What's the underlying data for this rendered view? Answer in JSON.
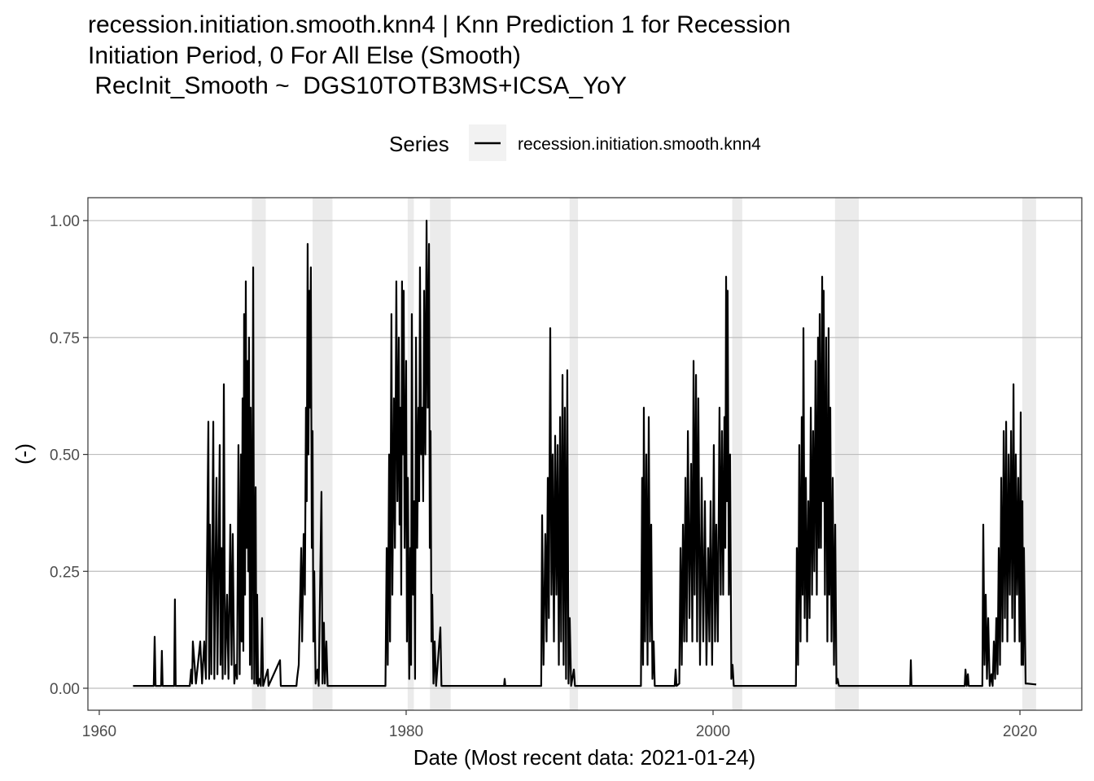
{
  "chart_data": {
    "type": "line",
    "title": [
      "recession.initiation.smooth.knn4 | Knn Prediction 1 for Recession",
      "Initiation Period, 0 For All Else (Smooth)",
      " RecInit_Smooth ~  DGS10TOTB3MS+ICSA_YoY"
    ],
    "xlabel": "Date (Most recent data: 2021-01-24)",
    "ylabel": "(-)",
    "legend_title": "Series",
    "legend_position": "top",
    "grid": true,
    "xlim": [
      1959.26,
      2024.03
    ],
    "ylim": [
      -0.047,
      1.049
    ],
    "xticks": [
      1960,
      1980,
      2000,
      2020
    ],
    "yticks": [
      {
        "value": 0,
        "label": "0.00"
      },
      {
        "value": 0.25,
        "label": "0.25"
      },
      {
        "value": 0.5,
        "label": "0.50"
      },
      {
        "value": 0.75,
        "label": "0.75"
      },
      {
        "value": 1,
        "label": "1.00"
      }
    ],
    "shaded_regions": [
      [
        1969.95,
        1970.85
      ],
      [
        1973.9,
        1975.2
      ],
      [
        1980.1,
        1980.5
      ],
      [
        1981.55,
        1982.9
      ],
      [
        1990.65,
        1991.2
      ],
      [
        2001.25,
        2001.9
      ],
      [
        2007.95,
        2009.5
      ],
      [
        2020.15,
        2021.05
      ]
    ],
    "shade_color": "#ebebeb",
    "x": [
      1962.2,
      1963.55,
      1963.61,
      1963.67,
      1964.03,
      1964.08,
      1964.13,
      1964.88,
      1964.93,
      1964.98,
      1965.9,
      1965.99,
      1966.05,
      1966.1,
      1966.3,
      1966.58,
      1966.7,
      1966.84,
      1966.95,
      1967.11,
      1967.16,
      1967.21,
      1967.3,
      1967.43,
      1967.5,
      1967.64,
      1967.7,
      1967.85,
      1967.9,
      1967.96,
      1968.04,
      1968.12,
      1968.2,
      1968.33,
      1968.42,
      1968.54,
      1968.62,
      1968.7,
      1968.8,
      1968.91,
      1968.98,
      1969.07,
      1969.15,
      1969.23,
      1969.28,
      1969.34,
      1969.39,
      1969.44,
      1969.5,
      1969.55,
      1969.6,
      1969.66,
      1969.71,
      1969.76,
      1969.82,
      1969.87,
      1969.95,
      1970.03,
      1970.1,
      1970.19,
      1970.24,
      1970.29,
      1970.35,
      1970.45,
      1970.53,
      1970.61,
      1970.68,
      1970.98,
      1971.03,
      1971.78,
      1971.83,
      1972.85,
      1972.89,
      1973.0,
      1973.16,
      1973.22,
      1973.32,
      1973.4,
      1973.47,
      1973.52,
      1973.58,
      1973.63,
      1973.69,
      1973.74,
      1973.79,
      1973.85,
      1973.9,
      1973.95,
      1974.01,
      1974.1,
      1974.22,
      1974.3,
      1974.48,
      1974.55,
      1974.64,
      1974.7,
      1974.8,
      1974.88,
      1978.65,
      1978.73,
      1978.8,
      1978.89,
      1978.95,
      1979.04,
      1979.1,
      1979.2,
      1979.27,
      1979.36,
      1979.43,
      1979.52,
      1979.57,
      1979.63,
      1979.68,
      1979.73,
      1979.78,
      1979.84,
      1979.9,
      1980.0,
      1980.05,
      1980.11,
      1980.2,
      1980.27,
      1980.32,
      1980.37,
      1980.45,
      1980.53,
      1980.58,
      1980.64,
      1980.72,
      1980.8,
      1980.85,
      1980.9,
      1980.98,
      1981.06,
      1981.11,
      1981.17,
      1981.25,
      1981.33,
      1981.4,
      1981.49,
      1981.54,
      1981.59,
      1981.65,
      1981.7,
      1981.78,
      1981.86,
      1981.95,
      1982.23,
      1982.3,
      1986.38,
      1986.42,
      1986.46,
      1988.8,
      1988.86,
      1988.95,
      1989.07,
      1989.15,
      1989.23,
      1989.3,
      1989.39,
      1989.47,
      1989.55,
      1989.63,
      1989.71,
      1989.79,
      1989.87,
      1989.95,
      1990.03,
      1990.1,
      1990.19,
      1990.26,
      1990.34,
      1990.42,
      1990.5,
      1990.58,
      1990.66,
      1990.75,
      1990.93,
      1991.0,
      1995.3,
      1995.38,
      1995.44,
      1995.49,
      1995.57,
      1995.65,
      1995.73,
      1995.81,
      1995.89,
      1995.97,
      1996.05,
      1996.13,
      1996.2,
      1997.5,
      1997.56,
      1997.62,
      1997.8,
      1997.88,
      1997.96,
      1998.04,
      1998.12,
      1998.2,
      1998.28,
      1998.36,
      1998.46,
      1998.57,
      1998.65,
      1998.73,
      1998.8,
      1998.89,
      1998.96,
      1999.04,
      1999.15,
      1999.26,
      1999.36,
      1999.47,
      1999.57,
      1999.68,
      1999.76,
      1999.84,
      1999.94,
      2000.05,
      2000.13,
      2000.21,
      2000.31,
      2000.42,
      2000.5,
      2000.58,
      2000.66,
      2000.74,
      2000.8,
      2000.85,
      2000.9,
      2000.95,
      2001.03,
      2001.11,
      2001.19,
      2001.27,
      2001.35,
      2005.4,
      2005.46,
      2005.54,
      2005.62,
      2005.7,
      2005.78,
      2005.84,
      2005.89,
      2005.97,
      2006.05,
      2006.13,
      2006.21,
      2006.29,
      2006.37,
      2006.45,
      2006.52,
      2006.6,
      2006.68,
      2006.76,
      2006.84,
      2006.9,
      2006.95,
      2007.03,
      2007.11,
      2007.16,
      2007.21,
      2007.29,
      2007.37,
      2007.45,
      2007.53,
      2007.58,
      2007.64,
      2007.72,
      2007.8,
      2007.88,
      2007.96,
      2008.04,
      2008.12,
      2008.2,
      2012.85,
      2012.89,
      2012.93,
      2016.4,
      2016.45,
      2016.53,
      2016.61,
      2016.66,
      2017.55,
      2017.61,
      2017.69,
      2017.77,
      2017.85,
      2017.93,
      2018.03,
      2018.14,
      2018.22,
      2018.3,
      2018.38,
      2018.46,
      2018.54,
      2018.62,
      2018.7,
      2018.78,
      2018.86,
      2018.94,
      2019.02,
      2019.1,
      2019.18,
      2019.26,
      2019.34,
      2019.42,
      2019.5,
      2019.58,
      2019.66,
      2019.73,
      2019.81,
      2019.89,
      2019.97,
      2020.05,
      2020.1,
      2020.16,
      2020.21,
      2020.26,
      2020.37,
      2020.48,
      2021.06
    ],
    "series": [
      {
        "name": "recession.initiation.smooth.knn4",
        "color": "#000000",
        "values": [
          0.005,
          0.005,
          0.11,
          0.005,
          0.005,
          0.08,
          0.005,
          0.005,
          0.19,
          0.005,
          0.005,
          0.04,
          0.01,
          0.1,
          0.01,
          0.1,
          0.01,
          0.1,
          0.02,
          0.57,
          0.02,
          0.35,
          0.03,
          0.57,
          0.02,
          0.45,
          0.03,
          0.52,
          0.05,
          0.3,
          0.02,
          0.65,
          0.03,
          0.2,
          0.02,
          0.35,
          0.05,
          0.33,
          0.01,
          0.05,
          0.02,
          0.52,
          0.03,
          0.5,
          0.1,
          0.62,
          0.08,
          0.8,
          0.2,
          0.87,
          0.3,
          0.7,
          0.25,
          0.75,
          0.05,
          0.6,
          0.02,
          0.9,
          0.01,
          0.43,
          0.01,
          0.2,
          0.005,
          0.02,
          0.005,
          0.15,
          0.005,
          0.04,
          0.005,
          0.06,
          0.005,
          0.005,
          0.02,
          0.05,
          0.3,
          0.1,
          0.33,
          0.2,
          0.6,
          0.4,
          0.95,
          0.5,
          0.85,
          0.6,
          0.9,
          0.3,
          0.55,
          0.1,
          0.25,
          0.01,
          0.04,
          0.005,
          0.42,
          0.01,
          0.14,
          0.01,
          0.1,
          0.005,
          0.005,
          0.3,
          0.05,
          0.5,
          0.1,
          0.8,
          0.2,
          0.62,
          0.3,
          0.87,
          0.4,
          0.75,
          0.35,
          0.6,
          0.2,
          0.87,
          0.5,
          0.85,
          0.3,
          0.7,
          0.1,
          0.45,
          0.02,
          0.3,
          0.05,
          0.8,
          0.2,
          0.4,
          0.02,
          0.75,
          0.3,
          0.6,
          0.4,
          0.9,
          0.5,
          0.6,
          0.4,
          0.85,
          0.5,
          1.0,
          0.6,
          0.95,
          0.3,
          0.55,
          0.1,
          0.2,
          0.01,
          0.1,
          0.005,
          0.13,
          0.005,
          0.005,
          0.02,
          0.005,
          0.005,
          0.37,
          0.05,
          0.33,
          0.1,
          0.45,
          0.15,
          0.77,
          0.2,
          0.5,
          0.1,
          0.54,
          0.2,
          0.52,
          0.05,
          0.58,
          0.1,
          0.67,
          0.05,
          0.6,
          0.02,
          0.68,
          0.01,
          0.15,
          0.005,
          0.04,
          0.005,
          0.005,
          0.45,
          0.05,
          0.6,
          0.1,
          0.5,
          0.05,
          0.58,
          0.1,
          0.35,
          0.02,
          0.1,
          0.005,
          0.005,
          0.04,
          0.005,
          0.01,
          0.3,
          0.05,
          0.35,
          0.1,
          0.45,
          0.1,
          0.55,
          0.15,
          0.48,
          0.1,
          0.7,
          0.2,
          0.67,
          0.1,
          0.62,
          0.05,
          0.45,
          0.1,
          0.4,
          0.05,
          0.3,
          0.1,
          0.4,
          0.05,
          0.52,
          0.1,
          0.35,
          0.1,
          0.6,
          0.2,
          0.55,
          0.2,
          0.58,
          0.3,
          0.88,
          0.4,
          0.85,
          0.2,
          0.5,
          0.02,
          0.05,
          0.005,
          0.005,
          0.3,
          0.05,
          0.52,
          0.1,
          0.58,
          0.2,
          0.77,
          0.15,
          0.45,
          0.1,
          0.4,
          0.15,
          0.6,
          0.2,
          0.55,
          0.25,
          0.7,
          0.2,
          0.75,
          0.3,
          0.8,
          0.3,
          0.88,
          0.4,
          0.85,
          0.2,
          0.75,
          0.1,
          0.77,
          0.2,
          0.6,
          0.1,
          0.45,
          0.05,
          0.35,
          0.01,
          0.02,
          0.005,
          0.005,
          0.06,
          0.005,
          0.005,
          0.04,
          0.005,
          0.03,
          0.005,
          0.005,
          0.35,
          0.05,
          0.2,
          0.02,
          0.15,
          0.005,
          0.03,
          0.005,
          0.1,
          0.02,
          0.15,
          0.03,
          0.3,
          0.05,
          0.45,
          0.1,
          0.55,
          0.15,
          0.57,
          0.1,
          0.5,
          0.2,
          0.55,
          0.15,
          0.65,
          0.1,
          0.5,
          0.2,
          0.45,
          0.1,
          0.59,
          0.05,
          0.4,
          0.05,
          0.3,
          0.01,
          0.01,
          0.008
        ]
      }
    ]
  }
}
